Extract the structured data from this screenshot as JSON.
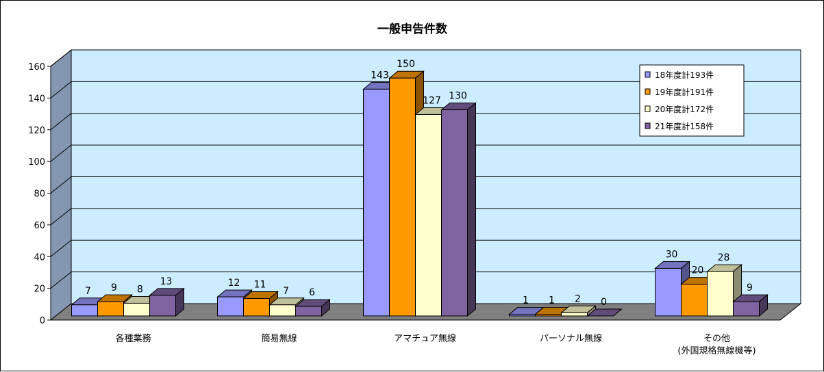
{
  "chart_data": {
    "type": "bar",
    "title": "一般申告件数",
    "categories": [
      [
        "各種業務"
      ],
      [
        "簡易無線"
      ],
      [
        "アマチュア無線"
      ],
      [
        "パーソナル無線"
      ],
      [
        "その他",
        "(外国規格無線機等)"
      ]
    ],
    "series": [
      {
        "name": "18年度計193件",
        "values": [
          7,
          12,
          143,
          1,
          30
        ],
        "color": "#9999FF"
      },
      {
        "name": "19年度計191件",
        "values": [
          9,
          11,
          150,
          1,
          20
        ],
        "color": "#FF9900"
      },
      {
        "name": "20年度計172件",
        "values": [
          8,
          7,
          127,
          2,
          28
        ],
        "color": "#FFFFCC"
      },
      {
        "name": "21年度計158件",
        "values": [
          13,
          6,
          130,
          0,
          9
        ],
        "color": "#8064A2"
      }
    ],
    "ylim": [
      0,
      160
    ],
    "yticks": [
      0,
      20,
      40,
      60,
      80,
      100,
      120,
      140,
      160
    ],
    "xlabel": "",
    "ylabel": "",
    "grid": true,
    "legend_position": "top-right",
    "colors": {
      "plot_background": "#CCECFF",
      "wall_side": "#8497B0",
      "floor": "#808080"
    }
  }
}
